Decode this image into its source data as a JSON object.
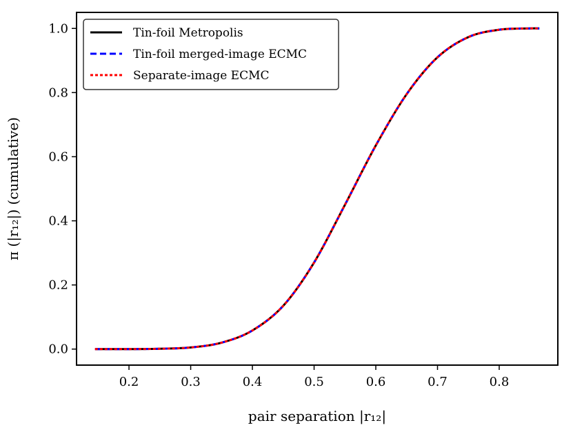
{
  "chart_data": {
    "type": "line",
    "title": "",
    "xlabel": "pair separation |r₁₂|",
    "ylabel": "π (|r₁₂|) (cumulative)",
    "xlim": [
      0.115,
      0.895
    ],
    "ylim": [
      -0.05,
      1.05
    ],
    "xticks": [
      0.2,
      0.3,
      0.4,
      0.5,
      0.6,
      0.7,
      0.8
    ],
    "xtick_labels": [
      "0.2",
      "0.3",
      "0.4",
      "0.5",
      "0.6",
      "0.7",
      "0.8"
    ],
    "yticks": [
      0.0,
      0.2,
      0.4,
      0.6,
      0.8,
      1.0
    ],
    "ytick_labels": [
      "0.0",
      "0.2",
      "0.4",
      "0.6",
      "0.8",
      "1.0"
    ],
    "grid": false,
    "legend_position": "top-left",
    "x": [
      0.145,
      0.2,
      0.25,
      0.3,
      0.35,
      0.4,
      0.45,
      0.5,
      0.55,
      0.6,
      0.65,
      0.7,
      0.75,
      0.8,
      0.85,
      0.865
    ],
    "series": [
      {
        "name": "Tin-foil Metropolis",
        "color": "#000000",
        "style": "solid",
        "values": [
          0.0,
          0.0,
          0.001,
          0.005,
          0.02,
          0.058,
          0.135,
          0.27,
          0.45,
          0.635,
          0.795,
          0.91,
          0.973,
          0.996,
          1.0,
          1.0
        ]
      },
      {
        "name": "Tin-foil merged-image ECMC",
        "color": "#0000ff",
        "style": "dashed",
        "values": [
          0.0,
          0.0,
          0.001,
          0.005,
          0.02,
          0.058,
          0.135,
          0.27,
          0.45,
          0.635,
          0.795,
          0.91,
          0.973,
          0.996,
          1.0,
          1.0
        ]
      },
      {
        "name": "Separate-image ECMC",
        "color": "#ff0000",
        "style": "dotted",
        "values": [
          0.0,
          0.0,
          0.001,
          0.005,
          0.02,
          0.058,
          0.135,
          0.27,
          0.45,
          0.635,
          0.795,
          0.91,
          0.973,
          0.996,
          1.0,
          1.0
        ]
      }
    ]
  }
}
